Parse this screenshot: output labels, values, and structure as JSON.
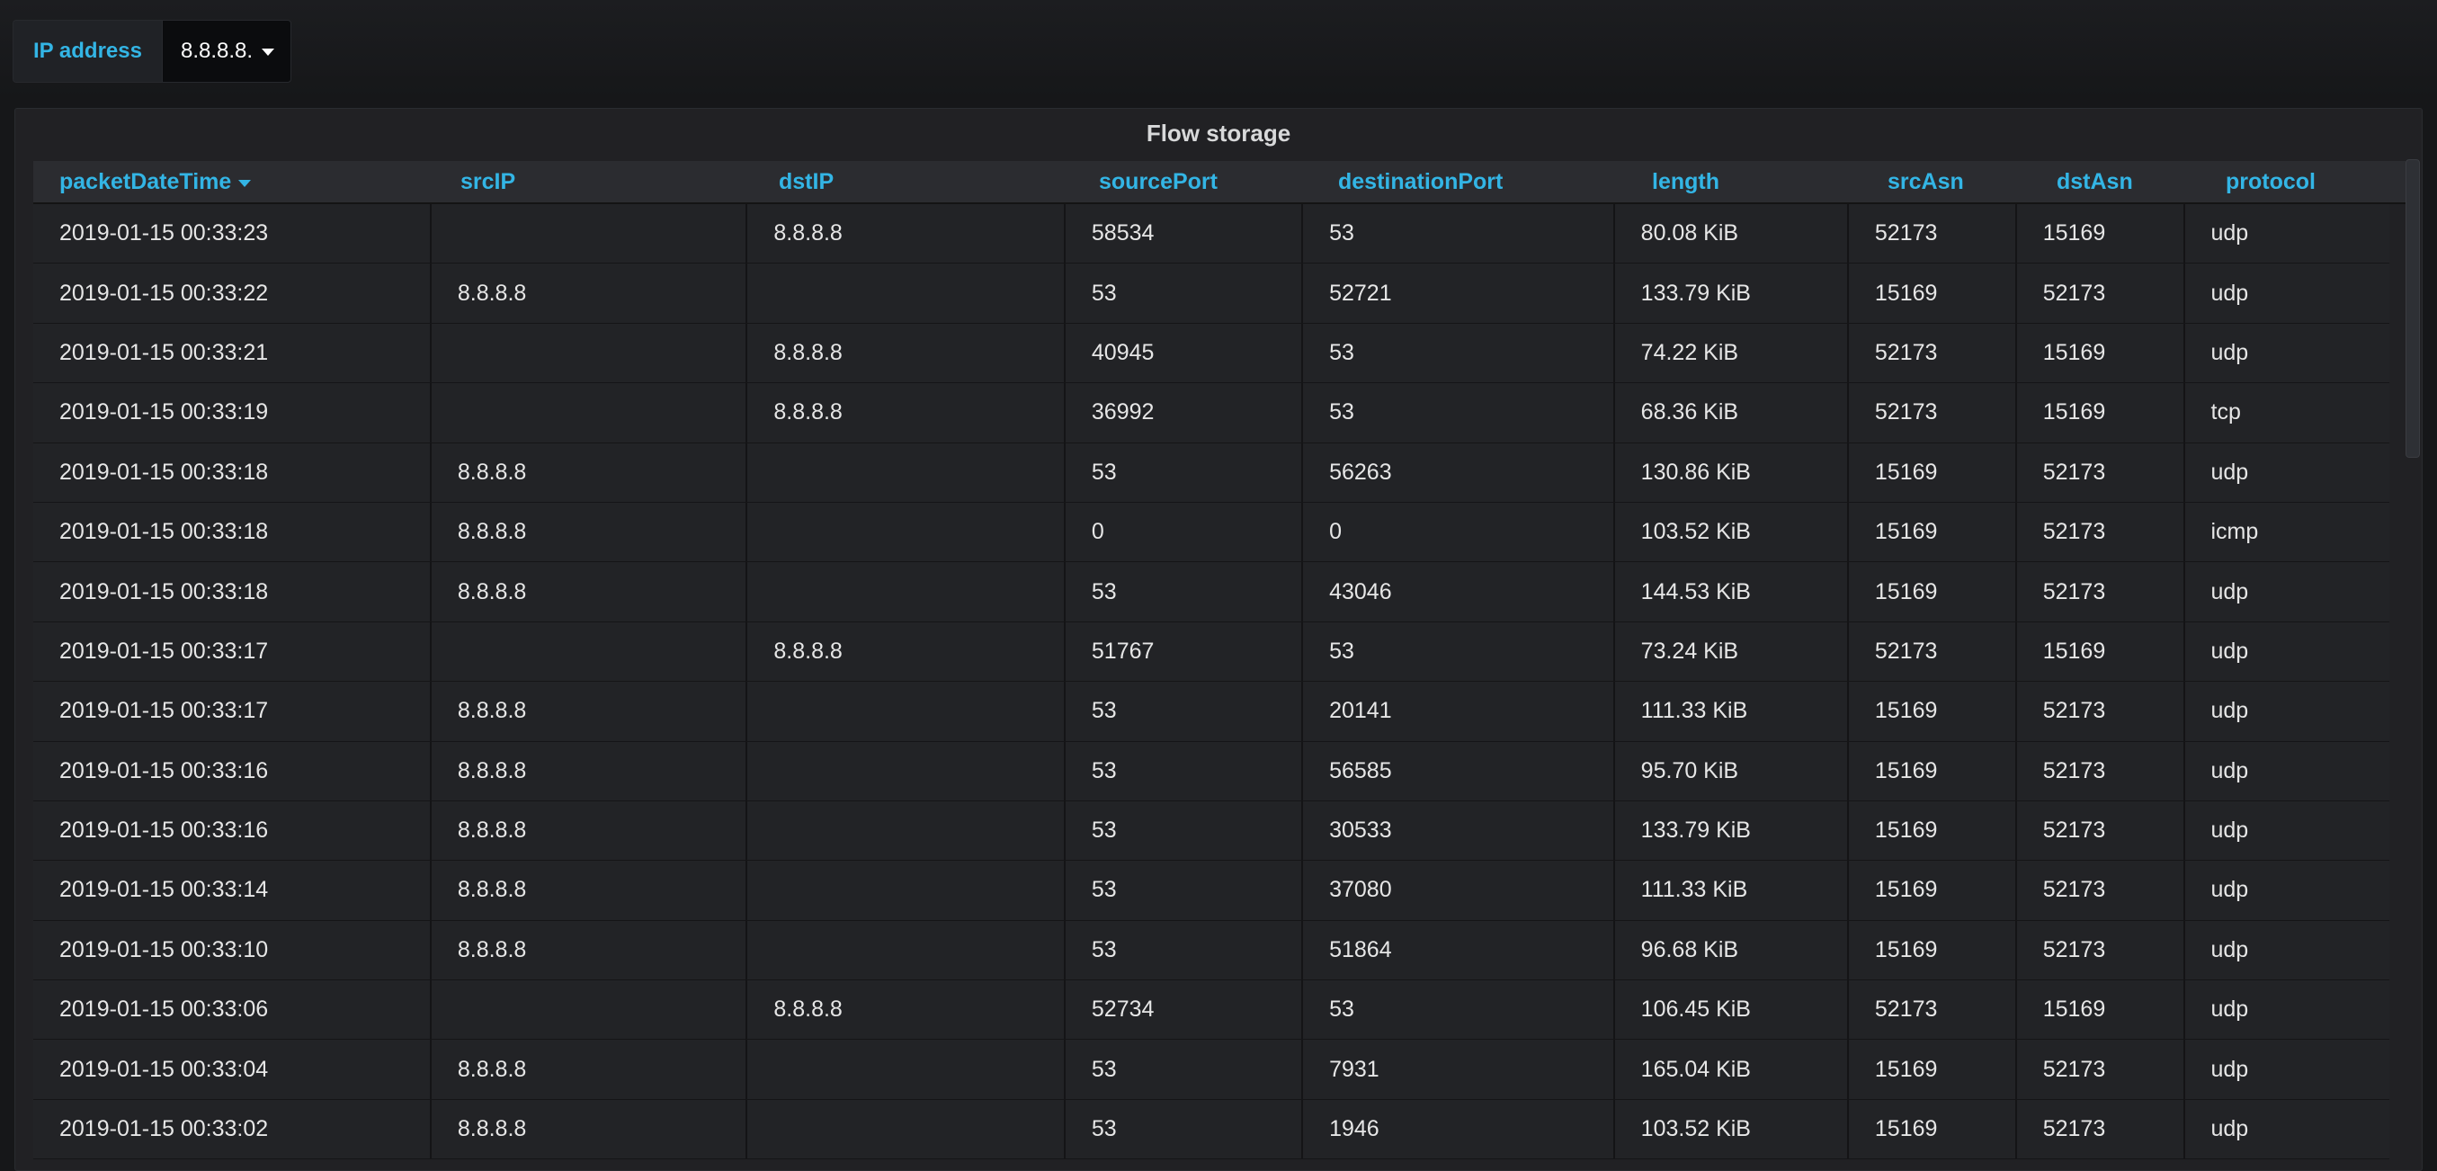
{
  "variables": {
    "ip_label": "IP address",
    "ip_value": "8.8.8.8."
  },
  "panel": {
    "title": "Flow storage"
  },
  "table": {
    "columns": [
      "packetDateTime",
      "srcIP",
      "dstIP",
      "sourcePort",
      "destinationPort",
      "length",
      "srcAsn",
      "dstAsn",
      "protocol"
    ],
    "sort_column": "packetDateTime",
    "sort_direction": "desc",
    "rows": [
      [
        "2019-01-15 00:33:23",
        "",
        "8.8.8.8",
        "58534",
        "53",
        "80.08 KiB",
        "52173",
        "15169",
        "udp"
      ],
      [
        "2019-01-15 00:33:22",
        "8.8.8.8",
        "",
        "53",
        "52721",
        "133.79 KiB",
        "15169",
        "52173",
        "udp"
      ],
      [
        "2019-01-15 00:33:21",
        "",
        "8.8.8.8",
        "40945",
        "53",
        "74.22 KiB",
        "52173",
        "15169",
        "udp"
      ],
      [
        "2019-01-15 00:33:19",
        "",
        "8.8.8.8",
        "36992",
        "53",
        "68.36 KiB",
        "52173",
        "15169",
        "tcp"
      ],
      [
        "2019-01-15 00:33:18",
        "8.8.8.8",
        "",
        "53",
        "56263",
        "130.86 KiB",
        "15169",
        "52173",
        "udp"
      ],
      [
        "2019-01-15 00:33:18",
        "8.8.8.8",
        "",
        "0",
        "0",
        "103.52 KiB",
        "15169",
        "52173",
        "icmp"
      ],
      [
        "2019-01-15 00:33:18",
        "8.8.8.8",
        "",
        "53",
        "43046",
        "144.53 KiB",
        "15169",
        "52173",
        "udp"
      ],
      [
        "2019-01-15 00:33:17",
        "",
        "8.8.8.8",
        "51767",
        "53",
        "73.24 KiB",
        "52173",
        "15169",
        "udp"
      ],
      [
        "2019-01-15 00:33:17",
        "8.8.8.8",
        "",
        "53",
        "20141",
        "111.33 KiB",
        "15169",
        "52173",
        "udp"
      ],
      [
        "2019-01-15 00:33:16",
        "8.8.8.8",
        "",
        "53",
        "56585",
        "95.70 KiB",
        "15169",
        "52173",
        "udp"
      ],
      [
        "2019-01-15 00:33:16",
        "8.8.8.8",
        "",
        "53",
        "30533",
        "133.79 KiB",
        "15169",
        "52173",
        "udp"
      ],
      [
        "2019-01-15 00:33:14",
        "8.8.8.8",
        "",
        "53",
        "37080",
        "111.33 KiB",
        "15169",
        "52173",
        "udp"
      ],
      [
        "2019-01-15 00:33:10",
        "8.8.8.8",
        "",
        "53",
        "51864",
        "96.68 KiB",
        "15169",
        "52173",
        "udp"
      ],
      [
        "2019-01-15 00:33:06",
        "",
        "8.8.8.8",
        "52734",
        "53",
        "106.45 KiB",
        "52173",
        "15169",
        "udp"
      ],
      [
        "2019-01-15 00:33:04",
        "8.8.8.8",
        "",
        "53",
        "7931",
        "165.04 KiB",
        "15169",
        "52173",
        "udp"
      ],
      [
        "2019-01-15 00:33:02",
        "8.8.8.8",
        "",
        "53",
        "1946",
        "103.52 KiB",
        "15169",
        "52173",
        "udp"
      ]
    ]
  },
  "colors": {
    "accent": "#33b5e5",
    "background": "#161719",
    "panel": "#212124",
    "text": "#e6e6e6"
  }
}
